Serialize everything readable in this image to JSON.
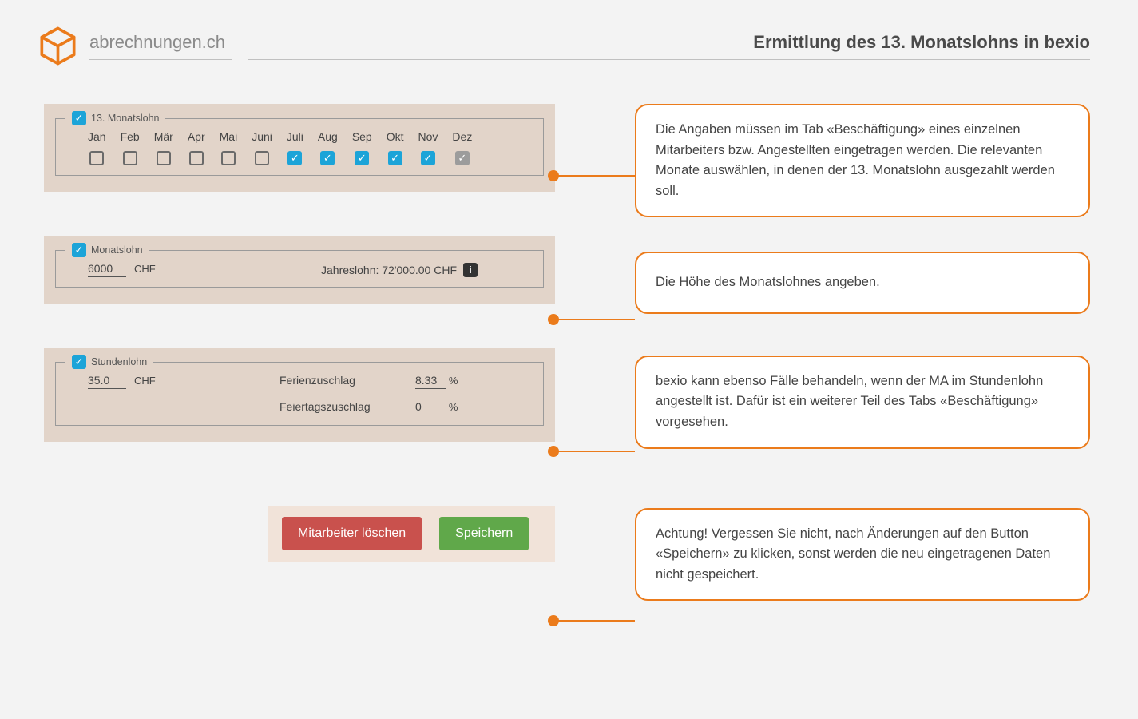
{
  "brand": "abrechnungen.ch",
  "page_title": "Ermittlung des 13. Monatslohns in bexio",
  "colors": {
    "accent": "#eb7b1b",
    "panel_bg": "#e2d4c9",
    "checkbox_on": "#1ca4d8",
    "checkbox_grey": "#9c9c9c",
    "btn_delete": "#c9514d",
    "btn_save": "#60a84a"
  },
  "panel1": {
    "legend": "13. Monatslohn",
    "months": [
      {
        "label": "Jan",
        "state": "off"
      },
      {
        "label": "Feb",
        "state": "off"
      },
      {
        "label": "Mär",
        "state": "off"
      },
      {
        "label": "Apr",
        "state": "off"
      },
      {
        "label": "Mai",
        "state": "off"
      },
      {
        "label": "Juni",
        "state": "off"
      },
      {
        "label": "Juli",
        "state": "on"
      },
      {
        "label": "Aug",
        "state": "on"
      },
      {
        "label": "Sep",
        "state": "on"
      },
      {
        "label": "Okt",
        "state": "on"
      },
      {
        "label": "Nov",
        "state": "on"
      },
      {
        "label": "Dez",
        "state": "grey"
      }
    ]
  },
  "panel2": {
    "legend": "Monatslohn",
    "value": "6000",
    "currency": "CHF",
    "annual_label": "Jahreslohn: 72'000.00 CHF"
  },
  "panel3": {
    "legend": "Stundenlohn",
    "value": "35.0",
    "currency": "CHF",
    "ferien_label": "Ferienzuschlag",
    "ferien_val": "8.33",
    "feier_label": "Feiertagszuschlag",
    "feier_val": "0",
    "pct": "%"
  },
  "buttons": {
    "delete": "Mitarbeiter löschen",
    "save": "Speichern"
  },
  "callouts": {
    "c1": "Die Angaben müssen im Tab «Beschäftigung» eines einzelnen Mitarbeiters bzw. Angestellten eingetragen werden. Die relevanten Monate auswählen, in denen der 13. Monatslohn ausgezahlt werden soll.",
    "c2": "Die Höhe des Monatslohnes angeben.",
    "c3": "bexio kann ebenso Fälle behandeln, wenn der MA im Stundenlohn angestellt ist. Dafür ist ein weiterer Teil des Tabs «Beschäftigung» vorgesehen.",
    "c4": "Achtung! Vergessen Sie nicht, nach Änderungen auf den Button «Speichern» zu klicken, sonst werden die neu eingetragenen Daten nicht gespeichert."
  }
}
